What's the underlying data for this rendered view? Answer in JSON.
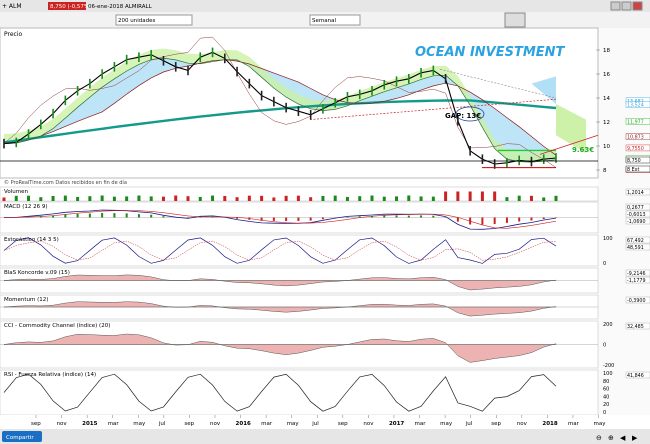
{
  "window": {
    "title": "+ ALM",
    "price_badge": "8,750 (-0,57%)",
    "date_instrument": "06-ene-2018 ALMIRALL",
    "units_select": "200 unidades",
    "period_select": "Semanal"
  },
  "watermark": "OCEAN INVESTMENT",
  "annotations": {
    "gap": "GAP: 13€",
    "target": "9.63€"
  },
  "source_note": "© ProRealTime.com  Datos recibidos en fin de día",
  "footer": {
    "share_label": "Compartir"
  },
  "colors": {
    "price_badge_bg": "#cc2222",
    "watermark": "#2aa3e0",
    "ma_long": "#139a8c",
    "cloud_green": "#c8f0a0",
    "cloud_blue": "#a8dcf4",
    "negative_fill": "#e8a0a0",
    "positive_fill": "#a0e0a0",
    "target_line": "#22cc22",
    "support_line": "#cc0000"
  },
  "chart_data": [
    {
      "type": "line",
      "name_panel": "Precio",
      "x_ticks": [
        "sep",
        "nov",
        "2015",
        "mar",
        "may",
        "jul",
        "sep",
        "nov",
        "2016",
        "mar",
        "may",
        "jul",
        "sep",
        "nov",
        "2017",
        "mar",
        "may",
        "jul",
        "sep",
        "nov",
        "2018",
        "mar",
        "may"
      ],
      "y_ticks": [
        "18",
        "16",
        "14",
        "12",
        "10",
        "8"
      ],
      "ylim": [
        7.5,
        19.5
      ],
      "series": [
        {
          "values": [
            10.2,
            10.3,
            11.0,
            11.8,
            12.7,
            13.8,
            14.6,
            15.2,
            16.0,
            16.6,
            17.2,
            17.4,
            17.6,
            17.1,
            16.6,
            16.3,
            17.4,
            17.8,
            17.3,
            16.2,
            15.2,
            14.2,
            13.7,
            13.2,
            12.9,
            12.6,
            13.1,
            13.6,
            14.1,
            14.3,
            14.6,
            15.1,
            15.4,
            15.6,
            16.1,
            16.3,
            15.6,
            12.1,
            9.6,
            8.9,
            8.5,
            8.6,
            8.8,
            8.7,
            8.9,
            9.0
          ]
        }
      ],
      "value_labels": [
        "13,682",
        "13,524",
        "11,977",
        "10,873",
        "9,7550",
        "9,0150",
        "8,750",
        "8,1150",
        "8 Ext"
      ]
    },
    {
      "type": "bar",
      "name_panel": "Volumen",
      "value_labels": [
        "1,2014"
      ]
    },
    {
      "type": "line",
      "name_panel": "MACD (12 26 9)",
      "value_labels": [
        "0,2677",
        "-0,6013",
        "-1,0690"
      ]
    },
    {
      "type": "line",
      "name_panel": "Estocástico (14 3 5)",
      "y_ticks": [
        "100",
        "0"
      ],
      "value_labels": [
        "67,492",
        "48,591"
      ]
    },
    {
      "type": "area",
      "name_panel": "BlaS Koncorde v.09 (15)",
      "value_labels": [
        "-9,2146",
        "-1,1779"
      ]
    },
    {
      "type": "area",
      "name_panel": "Momentum (12)",
      "value_labels": [
        "-0,3900"
      ]
    },
    {
      "type": "area",
      "name_panel": "CCI - Commodity Channel (índice) (20)",
      "y_ticks": [
        "200",
        "0",
        "-200"
      ],
      "value_labels": [
        "32,485"
      ]
    },
    {
      "type": "line",
      "name_panel": "RSI - Fuerza Relativa (índice) (14)",
      "y_ticks": [
        "100",
        "80",
        "60",
        "40",
        "20",
        "0"
      ],
      "value_labels": [
        "41,846"
      ]
    }
  ]
}
